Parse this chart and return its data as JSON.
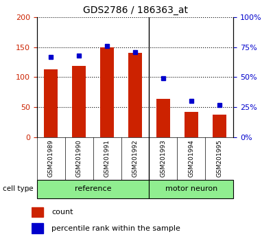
{
  "title": "GDS2786 / 186363_at",
  "samples": [
    "GSM201989",
    "GSM201990",
    "GSM201991",
    "GSM201992",
    "GSM201993",
    "GSM201994",
    "GSM201995"
  ],
  "counts": [
    113,
    119,
    150,
    140,
    64,
    42,
    38
  ],
  "percentiles": [
    67,
    68,
    76,
    71,
    49,
    30,
    27
  ],
  "ref_count": 4,
  "bar_color": "#CC2200",
  "dot_color": "#0000CC",
  "left_ylim": [
    0,
    200
  ],
  "right_ylim": [
    0,
    100
  ],
  "left_yticks": [
    0,
    50,
    100,
    150,
    200
  ],
  "right_yticks": [
    0,
    25,
    50,
    75,
    100
  ],
  "right_yticklabels": [
    "0%",
    "25%",
    "50%",
    "75%",
    "100%"
  ],
  "left_color": "#CC2200",
  "right_color": "#0000CC",
  "label_bg": "#C8C8C8",
  "group_bg": "#90EE90",
  "ref_label": "reference",
  "mot_label": "motor neuron",
  "cell_type_label": "cell type",
  "legend_count": "count",
  "legend_percentile": "percentile rank within the sample"
}
